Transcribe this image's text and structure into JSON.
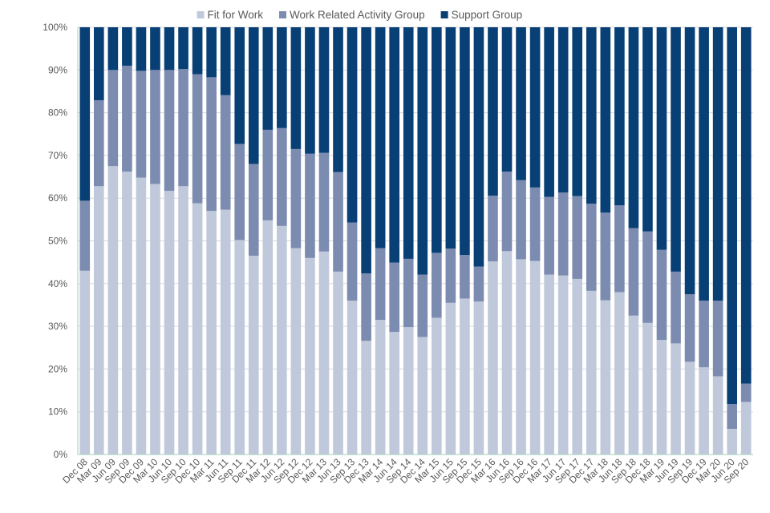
{
  "chart_data": {
    "type": "bar",
    "stacked": "percent",
    "title": "",
    "xlabel": "",
    "ylabel": "",
    "ylim": [
      0,
      100
    ],
    "yticks": [
      "0%",
      "10%",
      "20%",
      "30%",
      "40%",
      "50%",
      "60%",
      "70%",
      "80%",
      "90%",
      "100%"
    ],
    "legend_position": "top",
    "categories": [
      "Dec 08",
      "Mar 09",
      "Jun 09",
      "Sep 09",
      "Dec 09",
      "Mar 10",
      "Jun 10",
      "Sep 10",
      "Dec 10",
      "Mar 11",
      "Jun 11",
      "Sep 11",
      "Dec 11",
      "Mar 12",
      "Jun 12",
      "Sep 12",
      "Dec 12",
      "Mar 13",
      "Jun 13",
      "Sep 13",
      "Dec 13",
      "Mar 14",
      "Jun 14",
      "Sep 14",
      "Dec 14",
      "Mar 15",
      "Jun 15",
      "Sep 15",
      "Dec 15",
      "Mar 16",
      "Jun 16",
      "Sep 16",
      "Dec 16",
      "Mar 17",
      "Jun 17",
      "Sep 17",
      "Dec 17",
      "Mar 18",
      "Jun 18",
      "Sep 18",
      "Dec 18",
      "Mar 19",
      "Jun 19",
      "Sep 19",
      "Dec 19",
      "Mar 20",
      "Jun 20",
      "Sep 20"
    ],
    "series": [
      {
        "name": "Fit for Work",
        "color": "#c0c9db",
        "values": [
          43,
          62.8,
          67.5,
          66.2,
          64.8,
          63.3,
          61.7,
          62.8,
          58.8,
          57,
          57.3,
          50.2,
          46.5,
          54.8,
          53.5,
          48.3,
          46,
          47.5,
          42.8,
          36,
          26.6,
          31.5,
          28.7,
          29.8,
          27.5,
          32,
          35.5,
          36.5,
          35.8,
          45.2,
          47.6,
          45.7,
          45.3,
          42.1,
          41.9,
          41.1,
          38.3,
          36.1,
          38,
          32.5,
          30.8,
          26.8,
          26,
          21.7,
          20.4,
          18.3,
          6,
          12.3
        ]
      },
      {
        "name": "Work Related Activity Group",
        "color": "#7c8cb0",
        "values": [
          16.4,
          20.1,
          22.5,
          24.8,
          25,
          26.7,
          28.3,
          27.4,
          30.2,
          31.3,
          26.8,
          22.5,
          21.5,
          21.2,
          22.9,
          23.2,
          24.4,
          23.1,
          23.3,
          18.3,
          15.8,
          16.8,
          16.2,
          16,
          14.6,
          15.2,
          12.7,
          10.2,
          8.2,
          15.4,
          18.6,
          18.5,
          17.2,
          18.2,
          19.4,
          19.4,
          20.4,
          20.5,
          20.3,
          20.5,
          21.4,
          21.1,
          16.8,
          15.8,
          15.6,
          17.7,
          5.8,
          4.3
        ]
      },
      {
        "name": "Support Group",
        "color": "#083f75",
        "values": [
          40.6,
          17.1,
          10,
          9,
          10.2,
          10,
          10,
          9.8,
          11,
          11.7,
          15.9,
          27.3,
          32,
          24,
          23.6,
          28.5,
          29.6,
          29.4,
          33.9,
          45.7,
          57.6,
          51.7,
          55.1,
          54.2,
          57.9,
          52.8,
          51.8,
          53.3,
          56,
          39.4,
          33.8,
          35.8,
          37.5,
          39.7,
          38.7,
          39.5,
          41.3,
          43.4,
          41.7,
          47,
          47.8,
          52.1,
          57.2,
          62.5,
          64,
          64,
          88.2,
          83.4
        ]
      }
    ]
  }
}
